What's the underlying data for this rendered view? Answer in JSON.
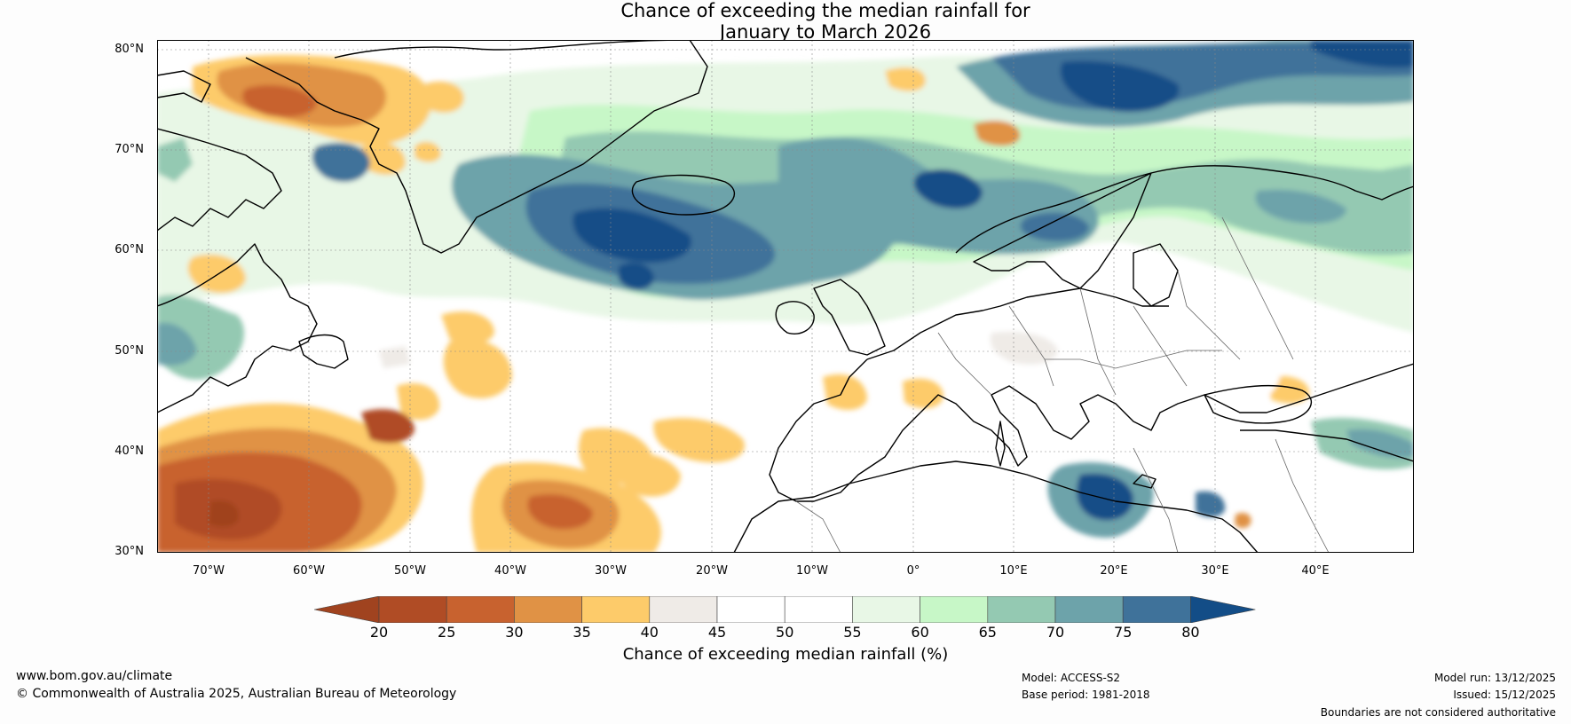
{
  "title": {
    "line1": "Chance of exceeding the median rainfall for",
    "line2": "January to March 2026"
  },
  "map": {
    "lat_labels": [
      "80°N",
      "70°N",
      "60°N",
      "50°N",
      "40°N",
      "30°N"
    ],
    "lon_labels": [
      "70°W",
      "60°W",
      "50°W",
      "40°W",
      "30°W",
      "20°W",
      "10°W",
      "0°",
      "10°E",
      "20°E",
      "30°E",
      "40°E"
    ],
    "lat_range": [
      30,
      81
    ],
    "lon_range": [
      -75,
      50
    ]
  },
  "colorbar": {
    "ticks": [
      "20",
      "25",
      "30",
      "35",
      "40",
      "45",
      "50",
      "55",
      "60",
      "65",
      "70",
      "75",
      "80"
    ],
    "colors": [
      "#a0431f",
      "#b04c25",
      "#c8622f",
      "#e09245",
      "#fdcb6a",
      "#efebe7",
      "#ffffff",
      "#ffffff",
      "#e8f7e6",
      "#c7f7c7",
      "#94c9b2",
      "#6da3aa",
      "#3f729a",
      "#134d87"
    ],
    "label": "Chance of exceeding median rainfall (%)"
  },
  "footer": {
    "url": "www.bom.gov.au/climate",
    "copyright": "© Commonwealth of Australia 2025, Australian Bureau of Meteorology",
    "model": "Model: ACCESS-S2",
    "base_period": "Base period: 1981-2018",
    "model_run": "Model run: 13/12/2025",
    "issued": "Issued: 15/12/2025",
    "disclaimer": "Boundaries are not considered authoritative"
  }
}
